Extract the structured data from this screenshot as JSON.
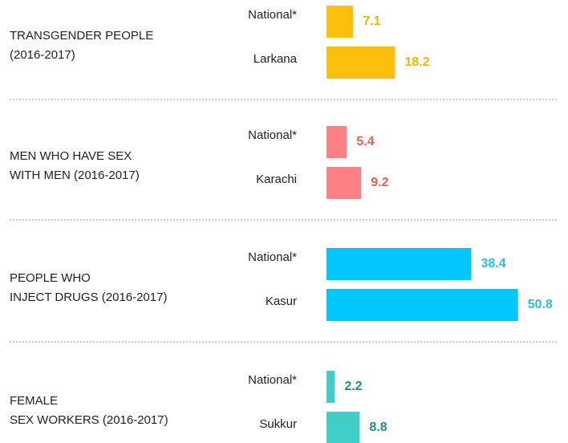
{
  "chart_data": [
    {
      "type": "bar",
      "title": [
        "TRANSGENDER PEOPLE",
        "(2016-2017)"
      ],
      "categories": [
        "National*",
        "Larkana"
      ],
      "values": [
        7.1,
        18.2
      ],
      "color": "#fcc00c",
      "label_color": "#f2b400"
    },
    {
      "type": "bar",
      "title": [
        "MEN WHO HAVE SEX",
        "WITH MEN (2016-2017)"
      ],
      "categories": [
        "National*",
        "Karachi"
      ],
      "values": [
        5.4,
        9.2
      ],
      "color": "#fd8184",
      "label_color": "#e9604e"
    },
    {
      "type": "bar",
      "title": [
        "PEOPLE WHO",
        "INJECT DRUGS (2016-2017)"
      ],
      "categories": [
        "National*",
        "Kasur"
      ],
      "values": [
        38.4,
        50.8
      ],
      "color": "#00c8ff",
      "label_color": "#1fc3f0"
    },
    {
      "type": "bar",
      "title": [
        "FEMALE",
        "SEX WORKERS (2016-2017)"
      ],
      "categories": [
        "National*",
        "Sukkur"
      ],
      "values": [
        2.2,
        8.8
      ],
      "color": "#3fcec8",
      "label_color": "#1c8f80"
    }
  ]
}
